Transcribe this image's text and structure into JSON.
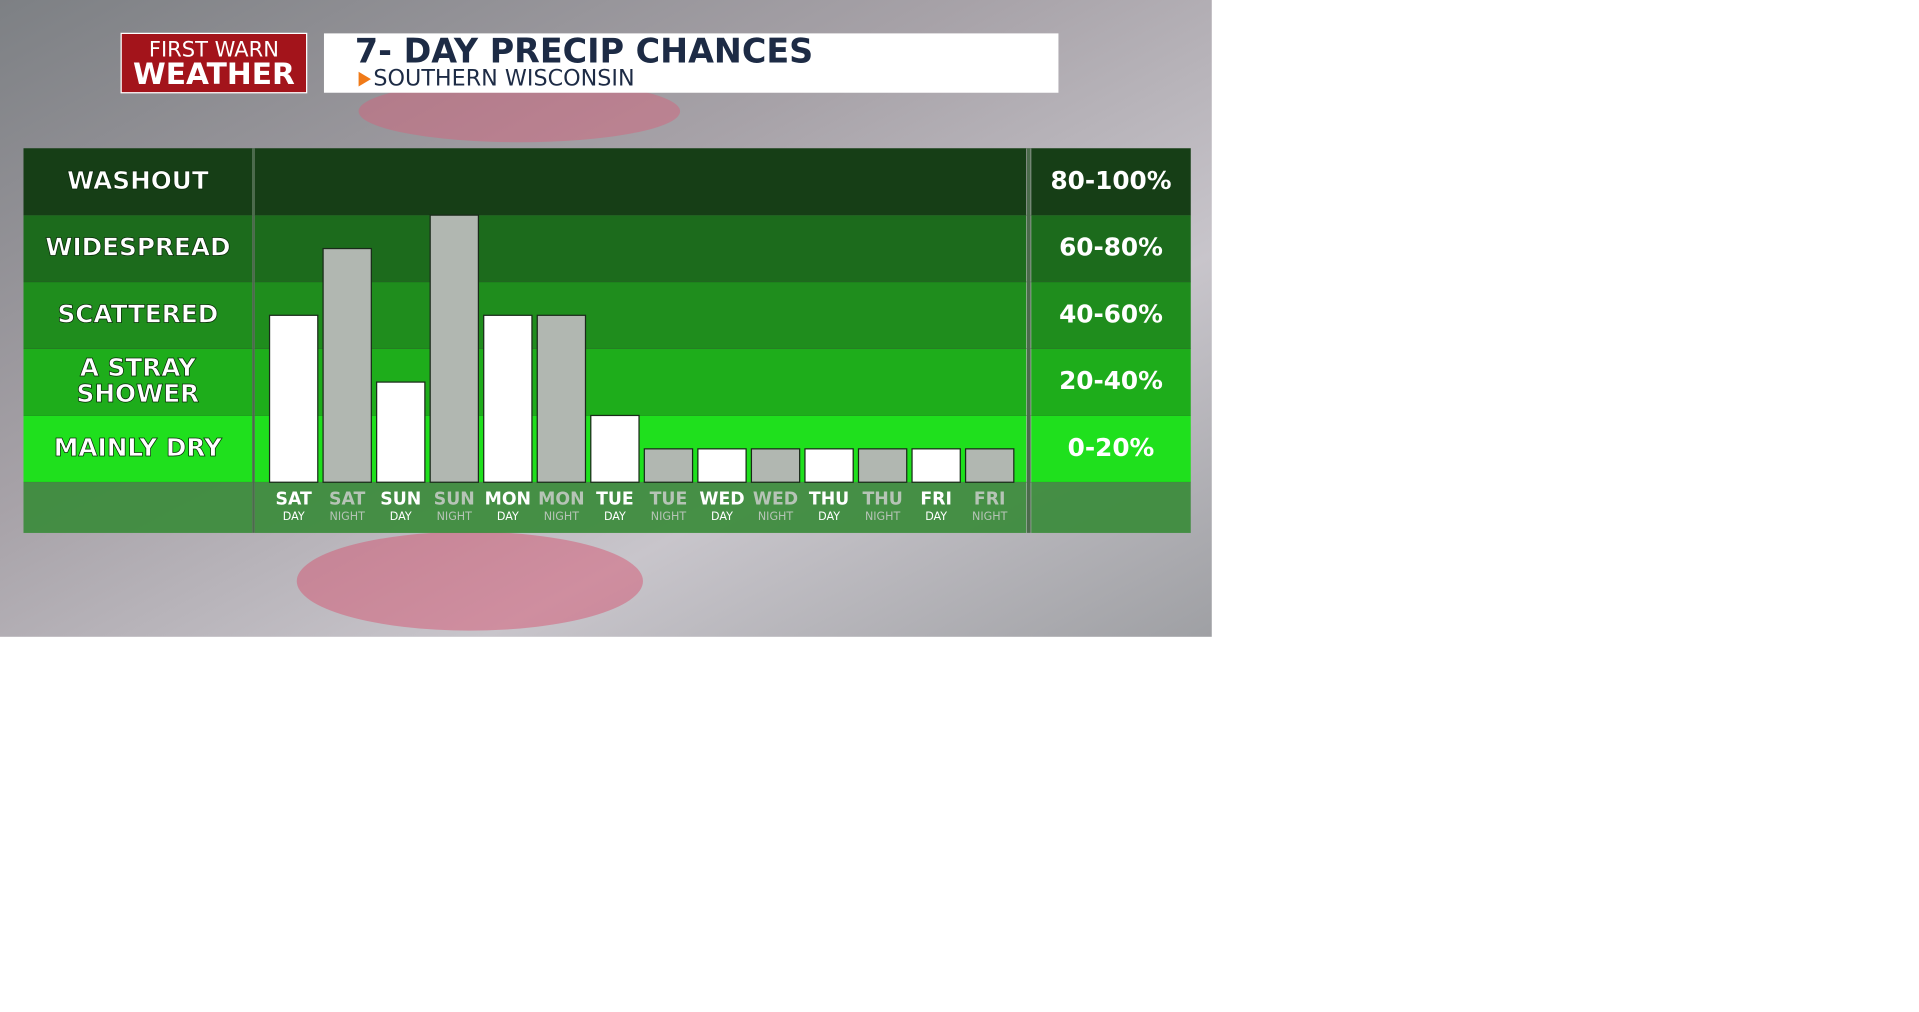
{
  "logo": {
    "line1": "FIRST WARN",
    "line2": "WEATHER"
  },
  "chart_data": {
    "type": "bar",
    "title": "7- DAY PRECIP CHANCES",
    "subtitle": "SOUTHERN WISCONSIN",
    "categories": [
      "SAT",
      "SAT",
      "SUN",
      "SUN",
      "MON",
      "MON",
      "TUE",
      "TUE",
      "WED",
      "WED",
      "THU",
      "THU",
      "FRI",
      "FRI"
    ],
    "periods": [
      "DAY",
      "NIGHT",
      "DAY",
      "NIGHT",
      "DAY",
      "NIGHT",
      "DAY",
      "NIGHT",
      "DAY",
      "NIGHT",
      "DAY",
      "NIGHT",
      "DAY",
      "NIGHT"
    ],
    "values": [
      50,
      70,
      30,
      80,
      50,
      50,
      20,
      10,
      10,
      10,
      10,
      10,
      10,
      10
    ],
    "colors": [
      "#ffffff",
      "#b1b7b1",
      "#ffffff",
      "#b1b7b1",
      "#ffffff",
      "#b1b7b1",
      "#ffffff",
      "#b1b7b1",
      "#ffffff",
      "#b1b7b1",
      "#ffffff",
      "#b1b7b1",
      "#ffffff",
      "#b1b7b1"
    ],
    "ylim": [
      0,
      100
    ],
    "yticks": [
      0,
      20,
      40,
      60,
      80,
      100
    ],
    "bands": [
      {
        "label": [
          "MAINLY DRY"
        ],
        "range": "0-20%",
        "color": "#1fe01d"
      },
      {
        "label": [
          "A STRAY",
          "SHOWER"
        ],
        "range": "20-40%",
        "color": "#1ead1b"
      },
      {
        "label": [
          "SCATTERED"
        ],
        "range": "40-60%",
        "color": "#1f8d1d"
      },
      {
        "label": [
          "WIDESPREAD"
        ],
        "range": "60-80%",
        "color": "#1c6b1c"
      },
      {
        "label": [
          "WASHOUT"
        ],
        "range": "80-100%",
        "color": "#163e16"
      }
    ]
  }
}
